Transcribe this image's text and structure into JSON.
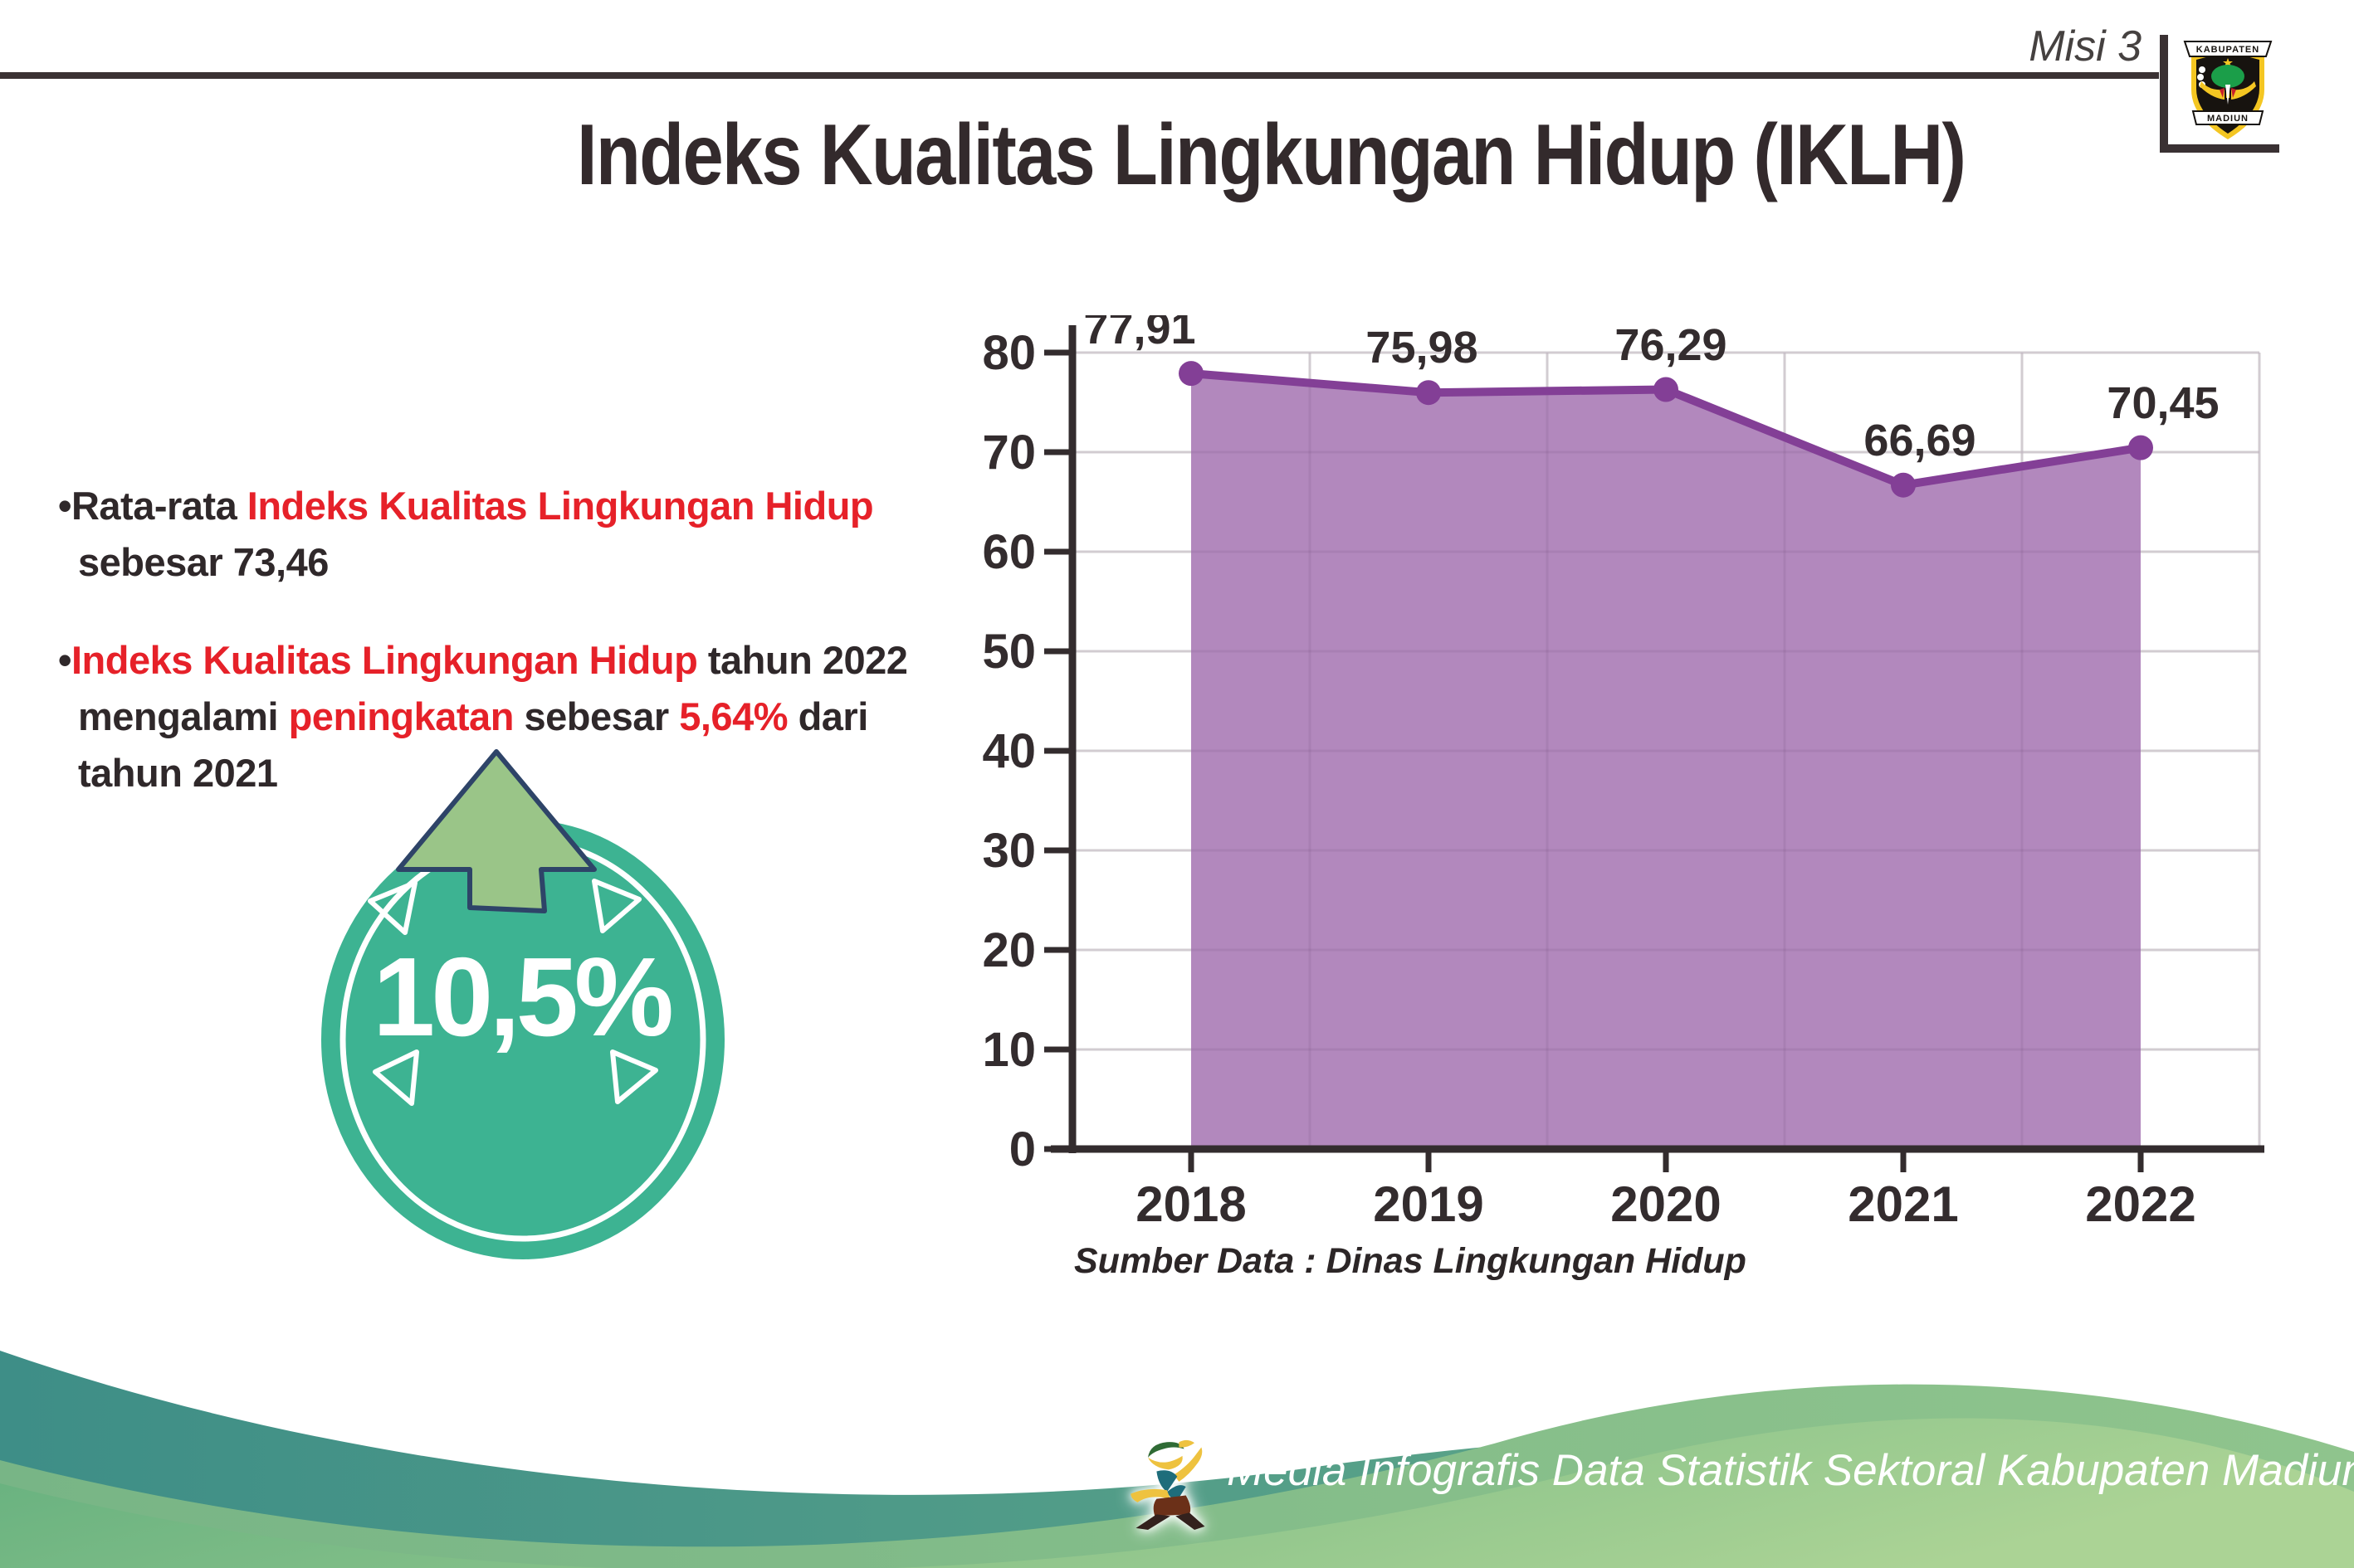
{
  "page": {
    "misi_label": "Misi 3",
    "title": "Indeks Kualitas Lingkungan Hidup (IKLH)"
  },
  "logo": {
    "top": "KABUPATEN",
    "bottom": "MADIUN"
  },
  "bullets": [
    {
      "lines": [
        [
          {
            "t": "•",
            "c": "dark"
          },
          {
            "t": "Rata-rata ",
            "c": "dark"
          },
          {
            "t": "Indeks Kualitas Lingkungan Hidup",
            "c": "red"
          }
        ],
        [
          {
            "t": "sebesar 73,46",
            "c": "dark"
          }
        ]
      ]
    },
    {
      "lines": [
        [
          {
            "t": "•",
            "c": "dark"
          },
          {
            "t": "Indeks Kualitas Lingkungan Hidup",
            "c": "red"
          },
          {
            "t": " tahun 2022",
            "c": "dark"
          }
        ],
        [
          {
            "t": "mengalami ",
            "c": "dark"
          },
          {
            "t": "peningkatan",
            "c": "red"
          },
          {
            "t": " sebesar ",
            "c": "dark"
          },
          {
            "t": "5,64%",
            "c": "red"
          },
          {
            "t": " dari",
            "c": "dark"
          }
        ],
        [
          {
            "t": "tahun 2021",
            "c": "dark"
          }
        ]
      ]
    }
  ],
  "badge": {
    "value": "10,5%",
    "circle_color": "#3db392",
    "arrow_color": "#9ac588",
    "arrow_outline": "#2e4468"
  },
  "chart_data": {
    "type": "area",
    "title": "",
    "categories": [
      "2018",
      "2019",
      "2020",
      "2021",
      "2022"
    ],
    "values": [
      77.91,
      75.98,
      76.29,
      66.69,
      70.45
    ],
    "value_labels": [
      "77,91",
      "75,98",
      "76,29",
      "66,69",
      "70,45"
    ],
    "xlabel": "",
    "ylabel": "",
    "ylim": [
      0,
      80
    ],
    "ytick_step": 10,
    "yticks": [
      0,
      10,
      20,
      30,
      40,
      50,
      60,
      70,
      80
    ],
    "grid": true,
    "legend": "none",
    "line_color": "#833f96",
    "fill_color": "#b288bd",
    "source": "Sumber Data : Dinas Lingkungan Hidup"
  },
  "source_note": "Sumber Data : Dinas Lingkungan Hidup",
  "footer": {
    "text": "Media Infografis Data Statistik Sektoral Kabupaten Madiun |"
  },
  "colors": {
    "title_text": "#332a2c",
    "body_text": "#2f282a",
    "highlight_red": "#e62129",
    "rule_dark": "#3a3133",
    "footer_teal": "#3e8e87",
    "footer_green_band": "#7ab685",
    "footer_green_main": "#66b180",
    "footer_green_light": "#a9d295",
    "logo_yellow": "#f4c622"
  }
}
